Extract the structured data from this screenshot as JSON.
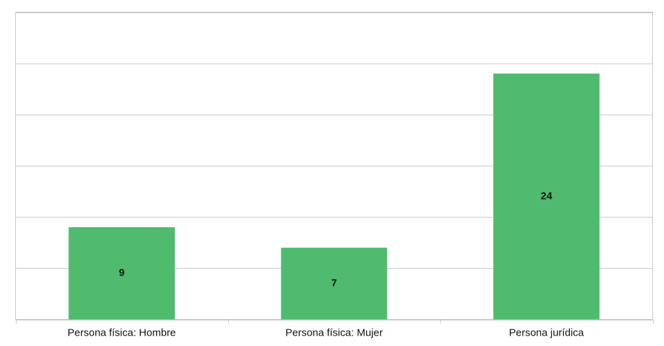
{
  "chart_data": {
    "type": "bar",
    "categories": [
      "Persona física: Hombre",
      "Persona física: Mujer",
      "Persona jurídica"
    ],
    "values": [
      9,
      7,
      24
    ],
    "color": "#4fbb6f",
    "ylim": [
      0,
      30
    ],
    "yticks": [
      0,
      5,
      10,
      15,
      20,
      25,
      30
    ],
    "grid": true
  }
}
